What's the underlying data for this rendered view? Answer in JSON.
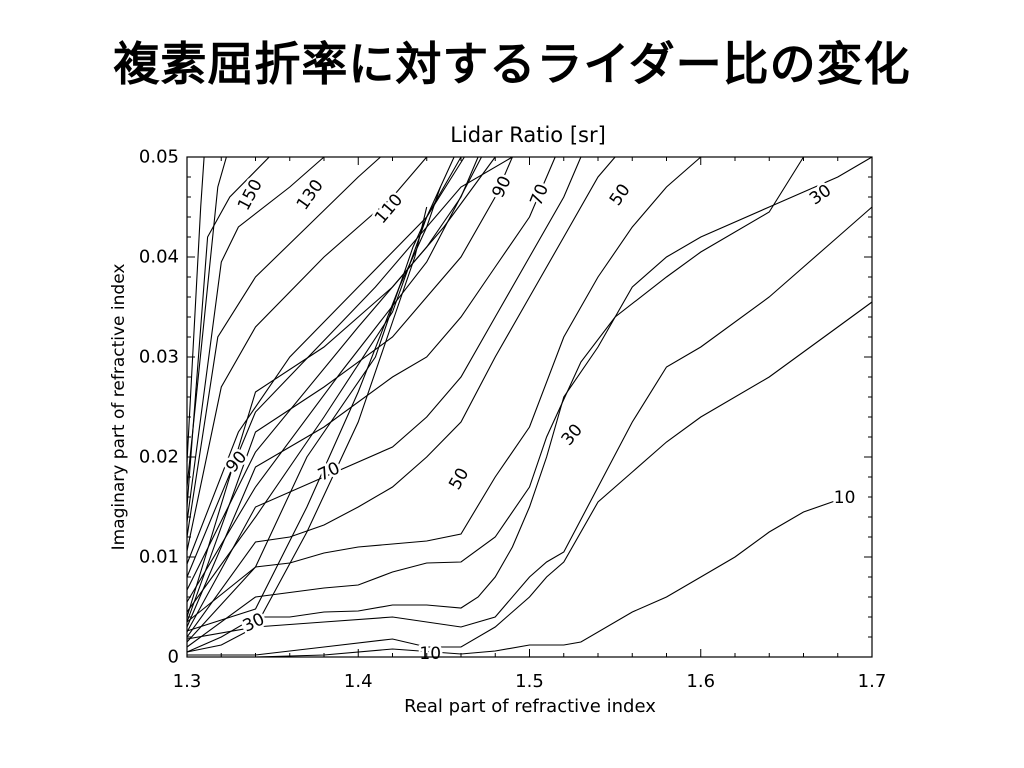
{
  "slide": {
    "title": "複素屈折率に対するライダー比の変化"
  },
  "chart_data": {
    "type": "contour",
    "title": "Lidar Ratio [sr]",
    "xlabel": "Real part of refractive index",
    "ylabel": "Imaginary part of refractive index",
    "xlim": [
      1.3,
      1.7
    ],
    "ylim": [
      0,
      0.05
    ],
    "x_ticks": [
      1.3,
      1.4,
      1.5,
      1.6,
      1.7
    ],
    "x_tick_labels": [
      "1.3",
      "1.4",
      "1.5",
      "1.6",
      "1.7"
    ],
    "y_ticks": [
      0,
      0.01,
      0.02,
      0.03,
      0.04,
      0.05
    ],
    "y_tick_labels": [
      "0",
      "0.01",
      "0.02",
      "0.03",
      "0.04",
      "0.05"
    ],
    "grid": false,
    "contour_labels": [
      {
        "text": "150",
        "x": 1.337,
        "y": 0.0462,
        "angle": -62
      },
      {
        "text": "130",
        "x": 1.372,
        "y": 0.0462,
        "angle": -55
      },
      {
        "text": "110",
        "x": 1.418,
        "y": 0.0448,
        "angle": -50
      },
      {
        "text": "90",
        "x": 1.484,
        "y": 0.047,
        "angle": -65
      },
      {
        "text": "70",
        "x": 1.506,
        "y": 0.0462,
        "angle": -68
      },
      {
        "text": "50",
        "x": 1.553,
        "y": 0.0462,
        "angle": -55
      },
      {
        "text": "30",
        "x": 1.67,
        "y": 0.0462,
        "angle": -35
      },
      {
        "text": "90",
        "x": 1.329,
        "y": 0.0195,
        "angle": -50
      },
      {
        "text": "70",
        "x": 1.383,
        "y": 0.0185,
        "angle": -25
      },
      {
        "text": "50",
        "x": 1.459,
        "y": 0.0178,
        "angle": -60
      },
      {
        "text": "30",
        "x": 1.525,
        "y": 0.0222,
        "angle": -50
      },
      {
        "text": "10",
        "x": 1.684,
        "y": 0.0159,
        "angle": 0
      },
      {
        "text": "30",
        "x": 1.339,
        "y": 0.0034,
        "angle": -25
      },
      {
        "text": "10",
        "x": 1.442,
        "y": 0.0003,
        "angle": 0
      }
    ],
    "contours": [
      {
        "points": [
          [
            1.3,
            0.0018
          ],
          [
            1.34,
            0.003
          ],
          [
            1.37,
            0.0125
          ],
          [
            1.4,
            0.0235
          ],
          [
            1.42,
            0.0335
          ],
          [
            1.433,
            0.04
          ],
          [
            1.44,
            0.045
          ]
        ]
      },
      {
        "points": [
          [
            1.3,
            0.0026
          ],
          [
            1.34,
            0.0048
          ],
          [
            1.37,
            0.015
          ],
          [
            1.4,
            0.0265
          ],
          [
            1.424,
            0.037
          ],
          [
            1.44,
            0.043
          ],
          [
            1.448,
            0.047
          ]
        ]
      },
      {
        "points": [
          [
            1.3,
            0.0035
          ],
          [
            1.34,
            0.009
          ],
          [
            1.37,
            0.02
          ],
          [
            1.41,
            0.03
          ],
          [
            1.432,
            0.041
          ],
          [
            1.448,
            0.047
          ],
          [
            1.456,
            0.05
          ]
        ]
      },
      {
        "points": [
          [
            1.3,
            0.0045
          ],
          [
            1.34,
            0.014
          ],
          [
            1.38,
            0.024
          ],
          [
            1.42,
            0.0345
          ],
          [
            1.44,
            0.044
          ],
          [
            1.46,
            0.05
          ]
        ]
      },
      {
        "points": [
          [
            1.3,
            0.0055
          ],
          [
            1.34,
            0.017
          ],
          [
            1.39,
            0.0285
          ],
          [
            1.44,
            0.0395
          ],
          [
            1.472,
            0.05
          ]
        ]
      },
      {
        "points": [
          [
            1.3,
            0.0067
          ],
          [
            1.34,
            0.0205
          ],
          [
            1.4,
            0.033
          ],
          [
            1.45,
            0.043
          ],
          [
            1.48,
            0.05
          ]
        ]
      },
      {
        "points": [
          [
            1.3,
            0.008
          ],
          [
            1.34,
            0.0245
          ],
          [
            1.41,
            0.037
          ],
          [
            1.46,
            0.047
          ],
          [
            1.49,
            0.05
          ]
        ]
      },
      {
        "points": [
          [
            1.3,
            0.0093
          ],
          [
            1.33,
            0.0225
          ],
          [
            1.36,
            0.03
          ],
          [
            1.4,
            0.037
          ],
          [
            1.44,
            0.044
          ],
          [
            1.462,
            0.05
          ]
        ]
      },
      {
        "points": [
          [
            1.3,
            0.0106
          ],
          [
            1.32,
            0.027
          ],
          [
            1.34,
            0.033
          ],
          [
            1.38,
            0.04
          ],
          [
            1.42,
            0.046
          ],
          [
            1.44,
            0.05
          ]
        ]
      },
      {
        "points": [
          [
            1.3,
            0.012
          ],
          [
            1.318,
            0.032
          ],
          [
            1.34,
            0.038
          ],
          [
            1.37,
            0.043
          ],
          [
            1.4,
            0.048
          ],
          [
            1.413,
            0.05
          ]
        ]
      },
      {
        "points": [
          [
            1.3,
            0.0135
          ],
          [
            1.32,
            0.0395
          ],
          [
            1.33,
            0.043
          ],
          [
            1.36,
            0.047
          ],
          [
            1.38,
            0.05
          ]
        ]
      },
      {
        "points": [
          [
            1.3,
            0.015
          ],
          [
            1.312,
            0.042
          ],
          [
            1.325,
            0.046
          ],
          [
            1.348,
            0.05
          ]
        ]
      },
      {
        "points": [
          [
            1.3,
            0.017
          ],
          [
            1.318,
            0.047
          ],
          [
            1.323,
            0.05
          ]
        ]
      },
      {
        "points": [
          [
            1.3,
            0.0195
          ],
          [
            1.308,
            0.045
          ],
          [
            1.31,
            0.05
          ]
        ]
      },
      {
        "points": [
          [
            1.3,
            0.0005
          ],
          [
            1.32,
            0.0012
          ],
          [
            1.34,
            0.003
          ],
          [
            1.38,
            0.0035
          ],
          [
            1.42,
            0.004
          ],
          [
            1.46,
            0.003
          ],
          [
            1.48,
            0.004
          ],
          [
            1.5,
            0.008
          ],
          [
            1.51,
            0.0095
          ],
          [
            1.52,
            0.0105
          ],
          [
            1.56,
            0.0235
          ],
          [
            1.58,
            0.029
          ],
          [
            1.6,
            0.031
          ],
          [
            1.64,
            0.036
          ],
          [
            1.68,
            0.042
          ],
          [
            1.7,
            0.045
          ]
        ]
      },
      {
        "points": [
          [
            1.3,
            0.0005
          ],
          [
            1.32,
            0.002
          ],
          [
            1.34,
            0.004
          ],
          [
            1.36,
            0.004
          ],
          [
            1.38,
            0.0045
          ],
          [
            1.4,
            0.0046
          ],
          [
            1.42,
            0.0052
          ],
          [
            1.44,
            0.0052
          ],
          [
            1.46,
            0.0049
          ],
          [
            1.47,
            0.006
          ],
          [
            1.48,
            0.008
          ],
          [
            1.49,
            0.011
          ],
          [
            1.5,
            0.015
          ],
          [
            1.51,
            0.02
          ],
          [
            1.52,
            0.026
          ],
          [
            1.54,
            0.031
          ],
          [
            1.56,
            0.037
          ],
          [
            1.58,
            0.04
          ],
          [
            1.6,
            0.042
          ],
          [
            1.64,
            0.045
          ],
          [
            1.68,
            0.048
          ],
          [
            1.7,
            0.05
          ]
        ]
      },
      {
        "points": [
          [
            1.3,
            0.001
          ],
          [
            1.34,
            0.006
          ],
          [
            1.38,
            0.0069
          ],
          [
            1.4,
            0.0072
          ],
          [
            1.42,
            0.0085
          ],
          [
            1.44,
            0.0094
          ],
          [
            1.46,
            0.0095
          ],
          [
            1.48,
            0.012
          ],
          [
            1.5,
            0.017
          ],
          [
            1.51,
            0.022
          ],
          [
            1.53,
            0.0295
          ],
          [
            1.55,
            0.034
          ],
          [
            1.58,
            0.038
          ],
          [
            1.6,
            0.0405
          ],
          [
            1.64,
            0.0445
          ],
          [
            1.66,
            0.05
          ]
        ]
      },
      {
        "points": [
          [
            1.3,
            0.0015
          ],
          [
            1.34,
            0.009
          ],
          [
            1.36,
            0.0094
          ],
          [
            1.38,
            0.0104
          ],
          [
            1.4,
            0.011
          ],
          [
            1.42,
            0.0113
          ],
          [
            1.44,
            0.0116
          ],
          [
            1.46,
            0.0123
          ],
          [
            1.48,
            0.018
          ],
          [
            1.5,
            0.023
          ],
          [
            1.52,
            0.032
          ],
          [
            1.54,
            0.038
          ],
          [
            1.56,
            0.043
          ],
          [
            1.58,
            0.047
          ],
          [
            1.6,
            0.05
          ]
        ]
      },
      {
        "points": [
          [
            1.3,
            0.002
          ],
          [
            1.34,
            0.0115
          ],
          [
            1.36,
            0.012
          ],
          [
            1.38,
            0.0132
          ],
          [
            1.4,
            0.015
          ],
          [
            1.42,
            0.017
          ],
          [
            1.44,
            0.02
          ],
          [
            1.46,
            0.0235
          ],
          [
            1.48,
            0.03
          ],
          [
            1.5,
            0.036
          ],
          [
            1.52,
            0.042
          ],
          [
            1.54,
            0.048
          ],
          [
            1.55,
            0.05
          ]
        ]
      },
      {
        "points": [
          [
            1.3,
            0.0025
          ],
          [
            1.34,
            0.015
          ],
          [
            1.38,
            0.018
          ],
          [
            1.42,
            0.021
          ],
          [
            1.44,
            0.024
          ],
          [
            1.46,
            0.028
          ],
          [
            1.48,
            0.034
          ],
          [
            1.5,
            0.04
          ],
          [
            1.52,
            0.046
          ],
          [
            1.53,
            0.05
          ]
        ]
      },
      {
        "points": [
          [
            1.3,
            0.003
          ],
          [
            1.34,
            0.019
          ],
          [
            1.38,
            0.023
          ],
          [
            1.42,
            0.028
          ],
          [
            1.44,
            0.03
          ],
          [
            1.46,
            0.034
          ],
          [
            1.48,
            0.039
          ],
          [
            1.5,
            0.044
          ],
          [
            1.515,
            0.05
          ]
        ]
      },
      {
        "points": [
          [
            1.3,
            0.0035
          ],
          [
            1.34,
            0.0225
          ],
          [
            1.38,
            0.027
          ],
          [
            1.42,
            0.032
          ],
          [
            1.44,
            0.036
          ],
          [
            1.46,
            0.04
          ],
          [
            1.48,
            0.046
          ],
          [
            1.49,
            0.05
          ]
        ]
      },
      {
        "points": [
          [
            1.3,
            0.004
          ],
          [
            1.34,
            0.0265
          ],
          [
            1.38,
            0.031
          ],
          [
            1.42,
            0.037
          ],
          [
            1.44,
            0.041
          ],
          [
            1.46,
            0.046
          ],
          [
            1.47,
            0.05
          ]
        ]
      },
      {
        "points": [
          [
            1.3,
            0.0002
          ],
          [
            1.34,
            0.0002
          ],
          [
            1.38,
            0.001
          ],
          [
            1.42,
            0.0018
          ],
          [
            1.44,
            0.001
          ],
          [
            1.46,
            0.001
          ],
          [
            1.48,
            0.003
          ],
          [
            1.5,
            0.006
          ],
          [
            1.51,
            0.008
          ],
          [
            1.52,
            0.0095
          ],
          [
            1.54,
            0.0155
          ],
          [
            1.56,
            0.0185
          ],
          [
            1.58,
            0.0215
          ],
          [
            1.6,
            0.024
          ],
          [
            1.64,
            0.028
          ],
          [
            1.68,
            0.033
          ],
          [
            1.7,
            0.0355
          ]
        ]
      },
      {
        "points": [
          [
            1.3,
            0.0
          ],
          [
            1.34,
            0.0
          ],
          [
            1.38,
            0.0002
          ],
          [
            1.42,
            0.0008
          ],
          [
            1.46,
            0.0003
          ],
          [
            1.48,
            0.0006
          ],
          [
            1.5,
            0.0012
          ],
          [
            1.52,
            0.0012
          ],
          [
            1.53,
            0.0015
          ],
          [
            1.56,
            0.0045
          ],
          [
            1.58,
            0.006
          ],
          [
            1.6,
            0.008
          ],
          [
            1.62,
            0.01
          ],
          [
            1.64,
            0.0125
          ],
          [
            1.66,
            0.0145
          ],
          [
            1.68,
            0.0157
          ]
        ]
      }
    ]
  }
}
